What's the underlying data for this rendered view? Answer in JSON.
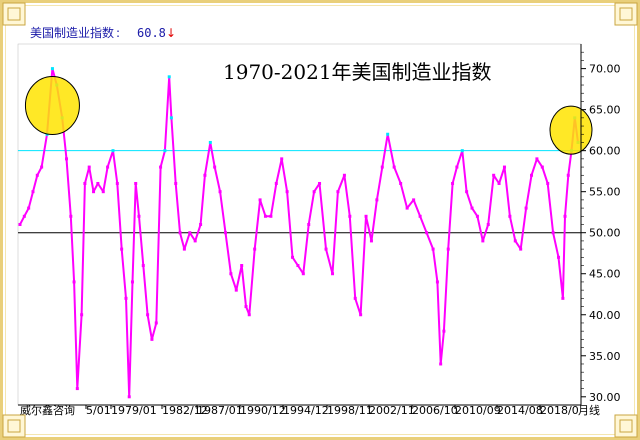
{
  "header": {
    "indicator_name": "美国制造业指数",
    "separator": ":",
    "current_value": "60.8",
    "trend_arrow": "↓",
    "trend_color": "#e00000"
  },
  "colors": {
    "series": "#ff00ff",
    "marker": "#00e5ff",
    "reference_cyan": "#00e5ff",
    "reference_black": "#000000",
    "highlight_fill": "#ffe400",
    "frame_gold": "#d9b23a"
  },
  "chart_data": {
    "type": "line",
    "title": "1970-2021年美国制造业指数",
    "x_tick_labels": [
      "5/01",
      "1979/01",
      "1982/12",
      "1987/01",
      "1990/12",
      "1994/12",
      "1998/11",
      "2002/11",
      "2006/10",
      "2010/09",
      "2014/08",
      "2018/0",
      "月线"
    ],
    "y_ticks": [
      30.0,
      35.0,
      40.0,
      45.0,
      50.0,
      55.0,
      60.0,
      65.0,
      70.0
    ],
    "ylim": [
      29,
      73
    ],
    "reference_lines": [
      {
        "value": 60,
        "color": "#00e5ff"
      },
      {
        "value": 50,
        "color": "#000000"
      }
    ],
    "annotations": [
      "highlight circle around 1973 peak",
      "highlight circle around 2021 peak"
    ],
    "footer_left": "威尔鑫咨询",
    "series": [
      {
        "x": [
          1970.0,
          1970.4,
          1970.8,
          1971.2,
          1971.6,
          1972.0,
          1972.5,
          1973.0,
          1973.4,
          1973.9,
          1974.3,
          1974.7,
          1975.0,
          1975.3,
          1975.7,
          1976.0,
          1976.4,
          1976.8,
          1977.2,
          1977.7,
          1978.1,
          1978.6,
          1979.0,
          1979.4,
          1979.8,
          1980.1,
          1980.4,
          1980.7,
          1981.0,
          1981.4,
          1981.8,
          1982.2,
          1982.6,
          1983.0,
          1983.4,
          1983.8,
          1984.0,
          1984.4,
          1984.8,
          1985.2,
          1985.7,
          1986.2,
          1986.7,
          1987.1,
          1987.6,
          1988.0,
          1988.5,
          1989.0,
          1989.5,
          1990.0,
          1990.5,
          1990.9,
          1991.2,
          1991.7,
          1992.2,
          1992.7,
          1993.2,
          1993.7,
          1994.2,
          1994.7,
          1995.2,
          1995.7,
          1996.2,
          1996.7,
          1997.2,
          1997.7,
          1998.3,
          1998.9,
          1999.4,
          2000.0,
          2000.5,
          2001.0,
          2001.5,
          2002.0,
          2002.5,
          2003.0,
          2003.5,
          2004.0,
          2004.6,
          2005.2,
          2005.8,
          2006.4,
          2007.0,
          2007.6,
          2008.2,
          2008.6,
          2008.9,
          2009.2,
          2009.6,
          2010.0,
          2010.4,
          2010.9,
          2011.3,
          2011.8,
          2012.3,
          2012.8,
          2013.3,
          2013.8,
          2014.3,
          2014.8,
          2015.3,
          2015.8,
          2016.3,
          2016.8,
          2017.3,
          2017.8,
          2018.3,
          2018.8,
          2019.3,
          2019.8,
          2020.2,
          2020.4,
          2020.7,
          2021.0,
          2021.3,
          2021.6
        ],
        "values": [
          51,
          52,
          53,
          55,
          57,
          58,
          62,
          70,
          68,
          64,
          59,
          52,
          44,
          31,
          40,
          56,
          58,
          55,
          56,
          55,
          58,
          60,
          56,
          48,
          42,
          30,
          44,
          56,
          52,
          46,
          40,
          37,
          39,
          58,
          60,
          69,
          64,
          56,
          50,
          48,
          50,
          49,
          51,
          57,
          61,
          58,
          55,
          50,
          45,
          43,
          46,
          41,
          40,
          48,
          54,
          52,
          52,
          56,
          59,
          55,
          47,
          46,
          45,
          51,
          55,
          56,
          48,
          45,
          55,
          57,
          52,
          42,
          40,
          52,
          49,
          54,
          58,
          62,
          58,
          56,
          53,
          54,
          52,
          50,
          48,
          44,
          34,
          38,
          48,
          56,
          58,
          60,
          55,
          53,
          52,
          49,
          51,
          57,
          56,
          58,
          52,
          49,
          48,
          53,
          57,
          59,
          58,
          56,
          50,
          47,
          42,
          52,
          57,
          60,
          64,
          61
        ]
      }
    ]
  }
}
